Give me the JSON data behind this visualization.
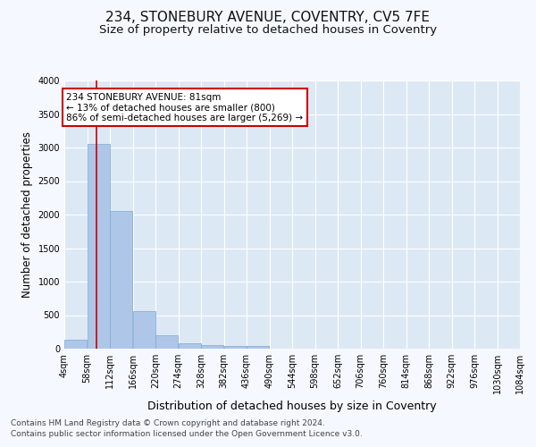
{
  "title1": "234, STONEBURY AVENUE, COVENTRY, CV5 7FE",
  "title2": "Size of property relative to detached houses in Coventry",
  "xlabel": "Distribution of detached houses by size in Coventry",
  "ylabel": "Number of detached properties",
  "footer1": "Contains HM Land Registry data © Crown copyright and database right 2024.",
  "footer2": "Contains public sector information licensed under the Open Government Licence v3.0.",
  "annotation_line1": "234 STONEBURY AVENUE: 81sqm",
  "annotation_line2": "← 13% of detached houses are smaller (800)",
  "annotation_line3": "86% of semi-detached houses are larger (5,269) →",
  "property_size": 81,
  "bin_edges": [
    4,
    58,
    112,
    166,
    220,
    274,
    328,
    382,
    436,
    490,
    544,
    598,
    652,
    706,
    760,
    814,
    868,
    922,
    976,
    1030,
    1084
  ],
  "bar_heights": [
    130,
    3060,
    2060,
    560,
    200,
    80,
    60,
    45,
    45,
    0,
    0,
    0,
    0,
    0,
    0,
    0,
    0,
    0,
    0,
    0
  ],
  "bar_color": "#aec6e8",
  "bar_edge_color": "#7aaad0",
  "vline_color": "#cc0000",
  "vline_x": 81,
  "annotation_box_color": "#cc0000",
  "background_color": "#dde8f5",
  "fig_background_color": "#f5f8fe",
  "grid_color": "#ffffff",
  "ylim": [
    0,
    4000
  ],
  "yticks": [
    0,
    500,
    1000,
    1500,
    2000,
    2500,
    3000,
    3500,
    4000
  ],
  "tick_labels": [
    "4sqm",
    "58sqm",
    "112sqm",
    "166sqm",
    "220sqm",
    "274sqm",
    "328sqm",
    "382sqm",
    "436sqm",
    "490sqm",
    "544sqm",
    "598sqm",
    "652sqm",
    "706sqm",
    "760sqm",
    "814sqm",
    "868sqm",
    "922sqm",
    "976sqm",
    "1030sqm",
    "1084sqm"
  ],
  "title1_fontsize": 11,
  "title2_fontsize": 9.5,
  "xlabel_fontsize": 9,
  "ylabel_fontsize": 8.5,
  "tick_fontsize": 7,
  "annotation_fontsize": 7.5,
  "footer_fontsize": 6.5
}
